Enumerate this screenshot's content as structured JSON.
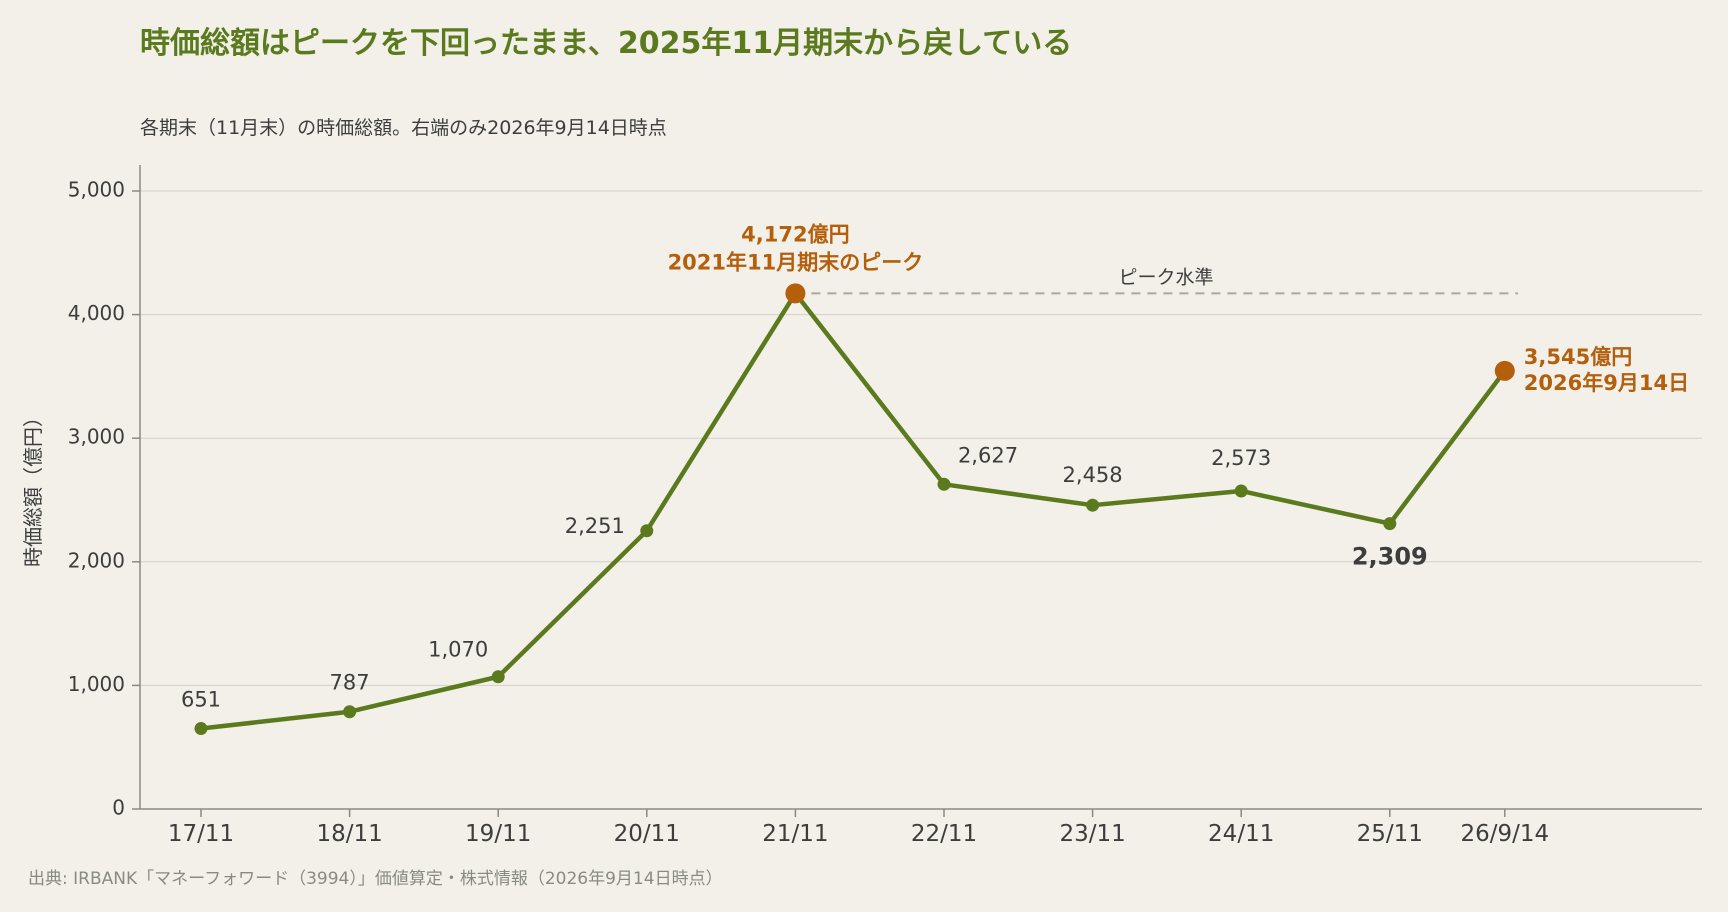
{
  "title": "時価総額はピークを下回ったまま、2025年11月期末から戻している",
  "subtitle": "各期末（11月末）の時価総額。右端のみ2026年9月14日時点",
  "source": "出典: IRBANK「マネーフォワード（3994）」価値算定・株式情報（2026年9月14日時点）",
  "colors": {
    "line": "#5b7a1e",
    "highlight": "#b35f0c",
    "grid": "#d2d0c8",
    "reference": "#a8a8a0",
    "text": "#3d3d3d"
  },
  "chart_data": {
    "type": "line",
    "categories": [
      "17/11",
      "18/11",
      "19/11",
      "20/11",
      "21/11",
      "22/11",
      "23/11",
      "24/11",
      "25/11",
      "26/9/14"
    ],
    "series": [
      {
        "values": [
          651,
          787,
          1070,
          2251,
          4172,
          2627,
          2458,
          2573,
          2309,
          3545
        ]
      }
    ],
    "data_labels": [
      "651",
      "787",
      "1,070",
      "2,251",
      "",
      "2,627",
      "2,458",
      "2,573",
      "2,309",
      ""
    ],
    "ylabel": "時価総額（億円）",
    "xlabel": "",
    "ylim": [
      0,
      5000
    ],
    "yticks": [
      0,
      1000,
      2000,
      3000,
      4000,
      5000
    ],
    "ytick_labels": [
      "0",
      "1,000",
      "2,000",
      "3,000",
      "4,000",
      "5,000"
    ],
    "grid": true,
    "annotations": {
      "peak": {
        "category": "21/11",
        "value": 4172,
        "line1": "4,172億円",
        "line2": "2021年11月期末のピーク"
      },
      "latest": {
        "category": "26/9/14",
        "value": 3545,
        "line1": "3,545億円",
        "line2": "2026年9月14日"
      },
      "reference_line": {
        "value": 4172,
        "label": "ピーク水準"
      }
    }
  }
}
